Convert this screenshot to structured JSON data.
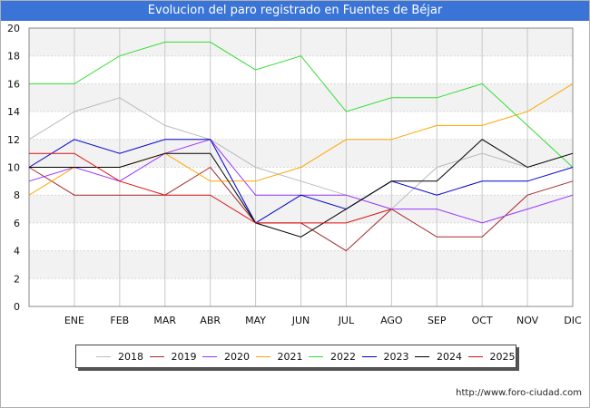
{
  "title": "Evolucion del paro registrado en Fuentes de Béjar",
  "footer": "http://www.foro-ciudad.com",
  "chart_data": {
    "type": "line",
    "title": "Evolucion del paro registrado en Fuentes de Béjar",
    "xlabel": "",
    "ylabel": "",
    "categories": [
      "",
      "ENE",
      "FEB",
      "MAR",
      "ABR",
      "MAY",
      "JUN",
      "JUL",
      "AGO",
      "SEP",
      "OCT",
      "NOV",
      "DIC"
    ],
    "ylim": [
      0,
      20
    ],
    "yticks": [
      0,
      2,
      4,
      6,
      8,
      10,
      12,
      14,
      16,
      18,
      20
    ],
    "grid": true,
    "legend_position": "bottom",
    "series": [
      {
        "name": "2018",
        "color": "#bbbbbb",
        "values": [
          12,
          14,
          15,
          13,
          12,
          10,
          9,
          8,
          7,
          10,
          11,
          10,
          11
        ]
      },
      {
        "name": "2019",
        "color": "#a52a2a",
        "values": [
          10,
          8,
          8,
          8,
          10,
          6,
          6,
          4,
          7,
          5,
          5,
          8,
          9
        ]
      },
      {
        "name": "2020",
        "color": "#9933ff",
        "values": [
          9,
          10,
          9,
          11,
          12,
          8,
          8,
          8,
          7,
          7,
          6,
          7,
          8
        ]
      },
      {
        "name": "2021",
        "color": "#ffa500",
        "values": [
          8,
          10,
          10,
          11,
          9,
          9,
          10,
          12,
          12,
          13,
          13,
          14,
          16
        ]
      },
      {
        "name": "2022",
        "color": "#33dd33",
        "values": [
          16,
          16,
          18,
          19,
          19,
          17,
          18,
          14,
          15,
          15,
          16,
          13,
          10
        ]
      },
      {
        "name": "2023",
        "color": "#0000cc",
        "values": [
          10,
          12,
          11,
          12,
          12,
          6,
          8,
          7,
          9,
          8,
          9,
          9,
          10
        ]
      },
      {
        "name": "2024",
        "color": "#000000",
        "values": [
          10,
          10,
          10,
          11,
          11,
          6,
          5,
          7,
          9,
          9,
          12,
          10,
          11
        ]
      },
      {
        "name": "2025",
        "color": "#dd1111",
        "values": [
          11,
          11,
          9,
          8,
          8,
          6,
          6,
          6,
          7,
          null,
          null,
          null,
          null
        ]
      }
    ]
  }
}
